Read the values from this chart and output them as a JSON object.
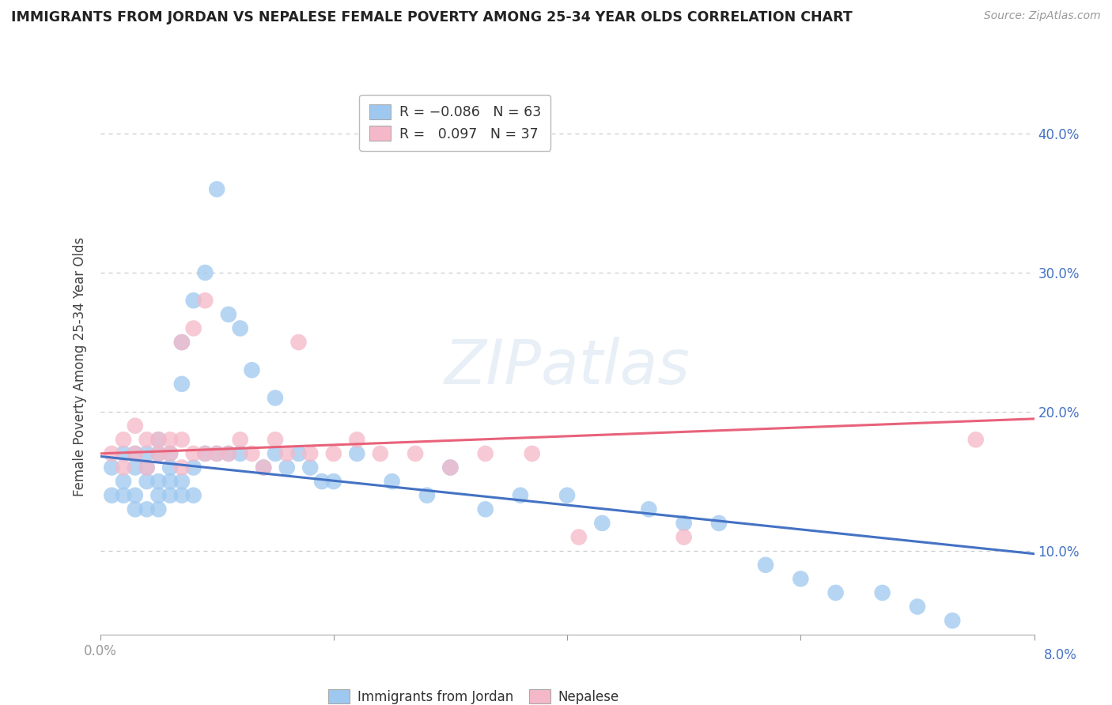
{
  "title": "IMMIGRANTS FROM JORDAN VS NEPALESE FEMALE POVERTY AMONG 25-34 YEAR OLDS CORRELATION CHART",
  "source": "Source: ZipAtlas.com",
  "ylabel": "Female Poverty Among 25-34 Year Olds",
  "xlim": [
    0.0,
    0.08
  ],
  "ylim": [
    0.04,
    0.425
  ],
  "yticks": [
    0.1,
    0.2,
    0.3,
    0.4
  ],
  "ytick_labels": [
    "10.0%",
    "20.0%",
    "30.0%",
    "40.0%"
  ],
  "xticks": [
    0.0,
    0.02,
    0.04,
    0.06,
    0.08
  ],
  "xtick_labels": [
    "0.0%",
    "",
    "",
    "",
    "8.0%"
  ],
  "legend_label1": "Immigrants from Jordan",
  "legend_label2": "Nepalese",
  "blue_scatter": "#9EC8F0",
  "pink_scatter": "#F5B8C8",
  "line_blue": "#4472C4",
  "line_pink": "#E8627A",
  "title_color": "#222222",
  "source_color": "#999999",
  "axis_color": "#999999",
  "grid_color": "#CCCCCC",
  "watermark": "ZIPatlas",
  "jordan_line_x": [
    0.0,
    0.08
  ],
  "jordan_line_y": [
    0.168,
    0.098
  ],
  "nepalese_line_x": [
    0.0,
    0.08
  ],
  "nepalese_line_y": [
    0.17,
    0.195
  ],
  "jordan_x": [
    0.001,
    0.001,
    0.002,
    0.002,
    0.002,
    0.003,
    0.003,
    0.003,
    0.003,
    0.004,
    0.004,
    0.004,
    0.004,
    0.005,
    0.005,
    0.005,
    0.005,
    0.005,
    0.006,
    0.006,
    0.006,
    0.006,
    0.007,
    0.007,
    0.007,
    0.007,
    0.008,
    0.008,
    0.008,
    0.009,
    0.009,
    0.01,
    0.01,
    0.011,
    0.011,
    0.012,
    0.012,
    0.013,
    0.014,
    0.015,
    0.015,
    0.016,
    0.017,
    0.018,
    0.019,
    0.02,
    0.022,
    0.025,
    0.028,
    0.03,
    0.033,
    0.036,
    0.04,
    0.043,
    0.047,
    0.05,
    0.053,
    0.057,
    0.06,
    0.063,
    0.067,
    0.07,
    0.073
  ],
  "jordan_y": [
    0.14,
    0.16,
    0.14,
    0.15,
    0.17,
    0.13,
    0.14,
    0.16,
    0.17,
    0.13,
    0.15,
    0.16,
    0.17,
    0.13,
    0.14,
    0.15,
    0.17,
    0.18,
    0.14,
    0.15,
    0.16,
    0.17,
    0.14,
    0.15,
    0.22,
    0.25,
    0.14,
    0.16,
    0.28,
    0.17,
    0.3,
    0.17,
    0.36,
    0.27,
    0.17,
    0.26,
    0.17,
    0.23,
    0.16,
    0.21,
    0.17,
    0.16,
    0.17,
    0.16,
    0.15,
    0.15,
    0.17,
    0.15,
    0.14,
    0.16,
    0.13,
    0.14,
    0.14,
    0.12,
    0.13,
    0.12,
    0.12,
    0.09,
    0.08,
    0.07,
    0.07,
    0.06,
    0.05
  ],
  "nepalese_x": [
    0.001,
    0.002,
    0.002,
    0.003,
    0.003,
    0.004,
    0.004,
    0.005,
    0.005,
    0.006,
    0.006,
    0.007,
    0.007,
    0.007,
    0.008,
    0.008,
    0.009,
    0.009,
    0.01,
    0.011,
    0.012,
    0.013,
    0.014,
    0.015,
    0.016,
    0.017,
    0.018,
    0.02,
    0.022,
    0.024,
    0.027,
    0.03,
    0.033,
    0.037,
    0.041,
    0.05,
    0.075
  ],
  "nepalese_y": [
    0.17,
    0.16,
    0.18,
    0.17,
    0.19,
    0.16,
    0.18,
    0.17,
    0.18,
    0.17,
    0.18,
    0.16,
    0.18,
    0.25,
    0.17,
    0.26,
    0.17,
    0.28,
    0.17,
    0.17,
    0.18,
    0.17,
    0.16,
    0.18,
    0.17,
    0.25,
    0.17,
    0.17,
    0.18,
    0.17,
    0.17,
    0.16,
    0.17,
    0.17,
    0.11,
    0.11,
    0.18
  ]
}
